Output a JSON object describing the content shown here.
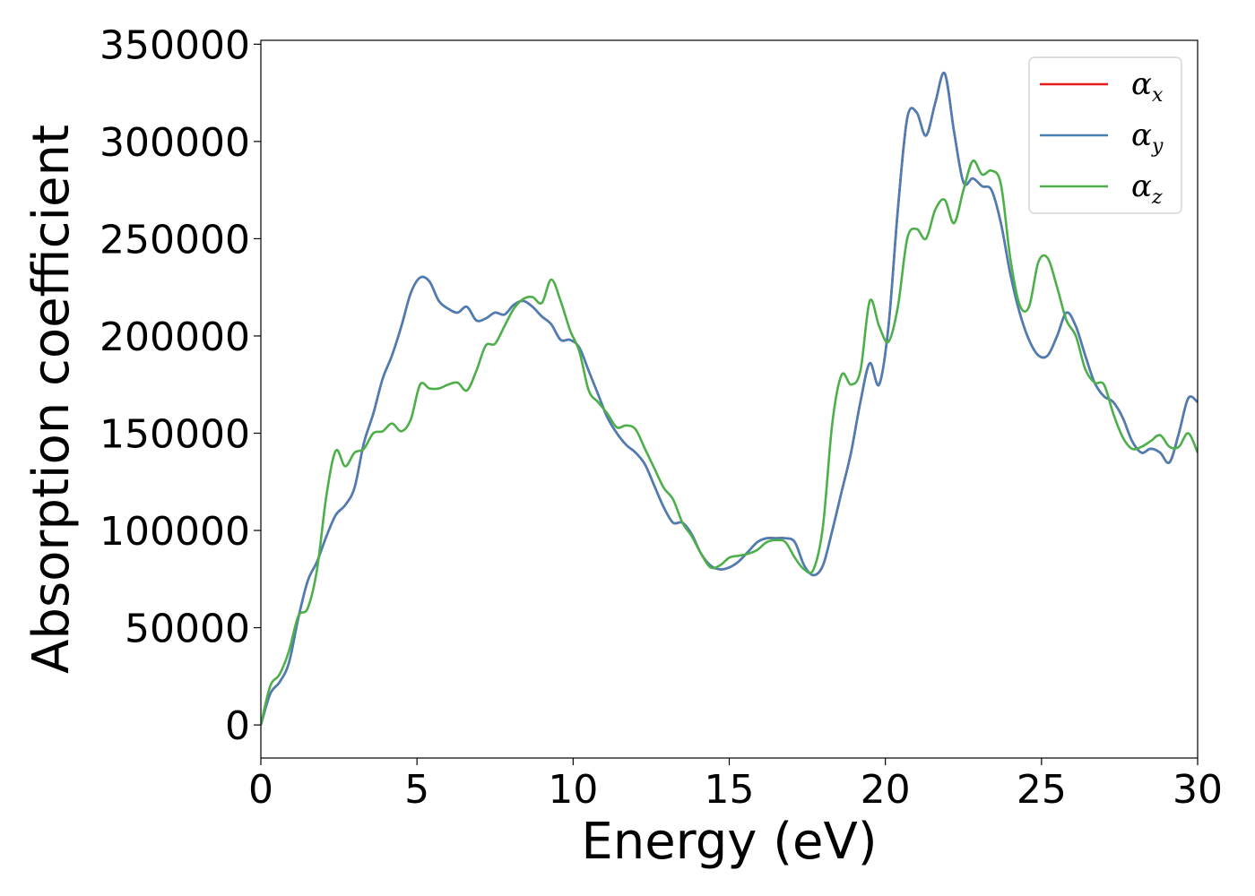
{
  "chart_data": {
    "type": "line",
    "xlabel": "Energy (eV)",
    "ylabel": "Absorption coefficient",
    "xlim": [
      0,
      30
    ],
    "ylim": [
      -17000,
      352000
    ],
    "xticks": [
      0,
      5,
      10,
      15,
      20,
      25,
      30
    ],
    "yticks": [
      0,
      50000,
      100000,
      150000,
      200000,
      250000,
      300000,
      350000
    ],
    "grid": false,
    "legend_position": "top-right",
    "series": [
      {
        "name": "α_x",
        "legend_base": "α",
        "legend_sub": "x",
        "color": "#e41a1c",
        "x": [
          0,
          0.3,
          0.6,
          0.9,
          1.2,
          1.5,
          1.8,
          2.1,
          2.4,
          2.7,
          3.0,
          3.3,
          3.6,
          3.9,
          4.2,
          4.5,
          4.8,
          5.1,
          5.4,
          5.7,
          6.0,
          6.3,
          6.6,
          6.9,
          7.2,
          7.5,
          7.8,
          8.1,
          8.4,
          8.7,
          9.0,
          9.3,
          9.6,
          9.9,
          10.2,
          10.5,
          10.8,
          11.1,
          11.4,
          11.7,
          12.0,
          12.3,
          12.6,
          12.9,
          13.2,
          13.5,
          13.8,
          14.1,
          14.4,
          14.7,
          15.0,
          15.3,
          15.6,
          15.9,
          16.2,
          16.5,
          16.8,
          17.1,
          17.4,
          17.7,
          18.0,
          18.3,
          18.6,
          18.9,
          19.2,
          19.5,
          19.8,
          20.1,
          20.4,
          20.7,
          21.0,
          21.3,
          21.6,
          21.9,
          22.2,
          22.5,
          22.8,
          23.1,
          23.4,
          23.7,
          24.0,
          24.3,
          24.6,
          24.9,
          25.2,
          25.5,
          25.8,
          26.1,
          26.4,
          26.7,
          27.0,
          27.3,
          27.6,
          27.9,
          28.2,
          28.5,
          28.8,
          29.1,
          29.4,
          29.7,
          30.0
        ],
        "y": [
          0,
          16000,
          22000,
          32000,
          55000,
          74000,
          84000,
          97000,
          108000,
          113000,
          122000,
          145000,
          160000,
          178000,
          190000,
          205000,
          222000,
          230000,
          228000,
          218000,
          214000,
          212000,
          215000,
          208000,
          209000,
          212000,
          211000,
          216000,
          218000,
          215000,
          210000,
          206000,
          198000,
          198000,
          194000,
          182000,
          170000,
          158000,
          150000,
          144000,
          140000,
          134000,
          123000,
          112000,
          104000,
          104000,
          98000,
          88000,
          82000,
          80000,
          81000,
          84000,
          89000,
          94000,
          96000,
          96000,
          96000,
          94000,
          82000,
          77000,
          82000,
          100000,
          120000,
          140000,
          166000,
          186000,
          175000,
          205000,
          265000,
          312000,
          315000,
          303000,
          320000,
          335000,
          305000,
          279000,
          281000,
          277000,
          275000,
          258000,
          232000,
          212000,
          198000,
          190000,
          190000,
          200000,
          212000,
          205000,
          190000,
          176000,
          169000,
          166000,
          158000,
          146000,
          140000,
          142000,
          140000,
          135000,
          150000,
          168000,
          166000
        ]
      },
      {
        "name": "α_y",
        "legend_base": "α",
        "legend_sub": "y",
        "color": "#4a7fb6",
        "x": [
          0,
          0.3,
          0.6,
          0.9,
          1.2,
          1.5,
          1.8,
          2.1,
          2.4,
          2.7,
          3.0,
          3.3,
          3.6,
          3.9,
          4.2,
          4.5,
          4.8,
          5.1,
          5.4,
          5.7,
          6.0,
          6.3,
          6.6,
          6.9,
          7.2,
          7.5,
          7.8,
          8.1,
          8.4,
          8.7,
          9.0,
          9.3,
          9.6,
          9.9,
          10.2,
          10.5,
          10.8,
          11.1,
          11.4,
          11.7,
          12.0,
          12.3,
          12.6,
          12.9,
          13.2,
          13.5,
          13.8,
          14.1,
          14.4,
          14.7,
          15.0,
          15.3,
          15.6,
          15.9,
          16.2,
          16.5,
          16.8,
          17.1,
          17.4,
          17.7,
          18.0,
          18.3,
          18.6,
          18.9,
          19.2,
          19.5,
          19.8,
          20.1,
          20.4,
          20.7,
          21.0,
          21.3,
          21.6,
          21.9,
          22.2,
          22.5,
          22.8,
          23.1,
          23.4,
          23.7,
          24.0,
          24.3,
          24.6,
          24.9,
          25.2,
          25.5,
          25.8,
          26.1,
          26.4,
          26.7,
          27.0,
          27.3,
          27.6,
          27.9,
          28.2,
          28.5,
          28.8,
          29.1,
          29.4,
          29.7,
          30.0
        ],
        "y": [
          0,
          16000,
          22000,
          32000,
          55000,
          74000,
          84000,
          97000,
          108000,
          113000,
          122000,
          145000,
          160000,
          178000,
          190000,
          205000,
          222000,
          230000,
          228000,
          218000,
          214000,
          212000,
          215000,
          208000,
          209000,
          212000,
          211000,
          216000,
          218000,
          215000,
          210000,
          206000,
          198000,
          198000,
          194000,
          182000,
          170000,
          158000,
          150000,
          144000,
          140000,
          134000,
          123000,
          112000,
          104000,
          104000,
          98000,
          88000,
          82000,
          80000,
          81000,
          84000,
          89000,
          94000,
          96000,
          96000,
          96000,
          94000,
          82000,
          77000,
          82000,
          100000,
          120000,
          140000,
          166000,
          186000,
          175000,
          205000,
          265000,
          312000,
          315000,
          303000,
          320000,
          335000,
          305000,
          279000,
          281000,
          277000,
          275000,
          258000,
          232000,
          212000,
          198000,
          190000,
          190000,
          200000,
          212000,
          205000,
          190000,
          176000,
          169000,
          166000,
          158000,
          146000,
          140000,
          142000,
          140000,
          135000,
          150000,
          168000,
          166000
        ]
      },
      {
        "name": "α_z",
        "legend_base": "α",
        "legend_sub": "z",
        "color": "#4daf4a",
        "x": [
          0,
          0.3,
          0.6,
          0.9,
          1.2,
          1.5,
          1.8,
          2.1,
          2.4,
          2.7,
          3.0,
          3.3,
          3.6,
          3.9,
          4.2,
          4.5,
          4.8,
          5.1,
          5.4,
          5.7,
          6.0,
          6.3,
          6.6,
          6.9,
          7.2,
          7.5,
          7.8,
          8.1,
          8.4,
          8.7,
          9.0,
          9.3,
          9.6,
          9.9,
          10.2,
          10.5,
          10.8,
          11.1,
          11.4,
          11.7,
          12.0,
          12.3,
          12.6,
          12.9,
          13.2,
          13.5,
          13.8,
          14.1,
          14.4,
          14.7,
          15.0,
          15.3,
          15.6,
          15.9,
          16.2,
          16.5,
          16.8,
          17.1,
          17.4,
          17.7,
          18.0,
          18.3,
          18.6,
          18.9,
          19.2,
          19.5,
          19.8,
          20.1,
          20.4,
          20.7,
          21.0,
          21.3,
          21.6,
          21.9,
          22.2,
          22.5,
          22.8,
          23.1,
          23.4,
          23.7,
          24.0,
          24.3,
          24.6,
          24.9,
          25.2,
          25.5,
          25.8,
          26.1,
          26.4,
          26.7,
          27.0,
          27.3,
          27.6,
          27.9,
          28.2,
          28.5,
          28.8,
          29.1,
          29.4,
          29.7,
          30.0
        ],
        "y": [
          0,
          20000,
          26000,
          38000,
          56000,
          60000,
          80000,
          118000,
          141000,
          133000,
          140000,
          142000,
          150000,
          151000,
          155000,
          151000,
          157000,
          175000,
          173000,
          173000,
          175000,
          176000,
          172000,
          182000,
          195000,
          196000,
          205000,
          214000,
          219000,
          220000,
          217000,
          229000,
          218000,
          203000,
          192000,
          172000,
          166000,
          160000,
          153000,
          154000,
          152000,
          142000,
          132000,
          122000,
          116000,
          104000,
          97000,
          88000,
          81000,
          82000,
          86000,
          87000,
          88000,
          90000,
          94000,
          95000,
          94000,
          86000,
          80000,
          80000,
          102000,
          155000,
          180000,
          175000,
          182000,
          218000,
          205000,
          197000,
          215000,
          250000,
          255000,
          250000,
          265000,
          270000,
          258000,
          275000,
          290000,
          283000,
          285000,
          278000,
          240000,
          216000,
          215000,
          238000,
          240000,
          225000,
          208000,
          200000,
          183000,
          176000,
          175000,
          160000,
          148000,
          142000,
          143000,
          146000,
          149000,
          143000,
          143000,
          150000,
          140000
        ]
      }
    ]
  }
}
